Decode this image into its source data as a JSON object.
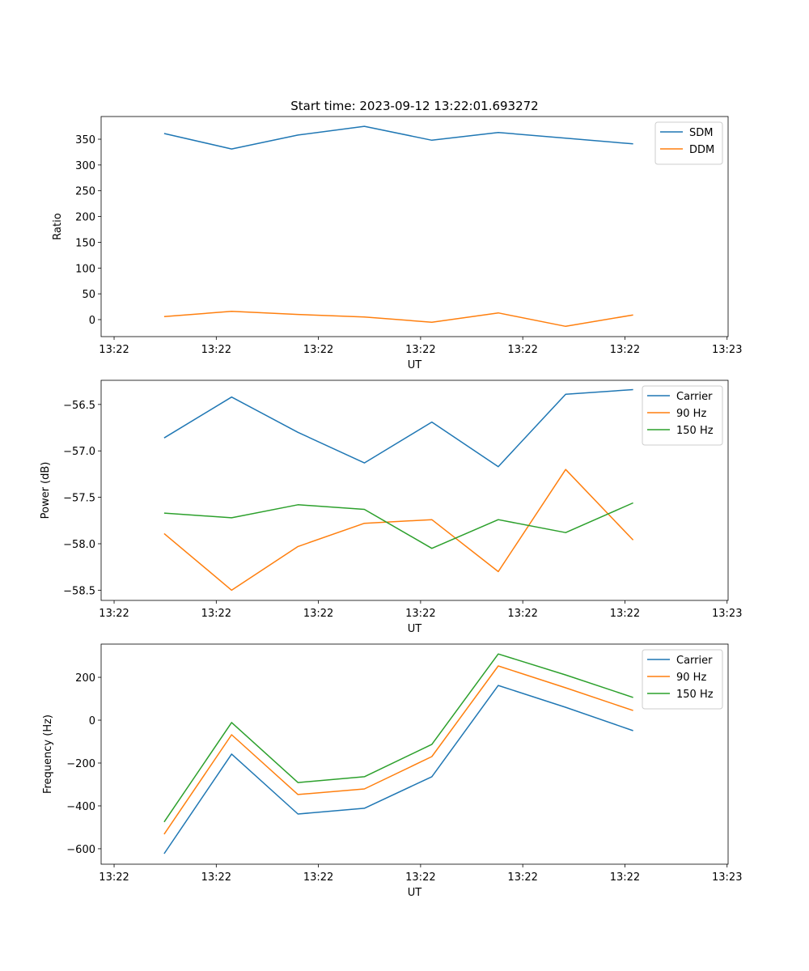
{
  "colors": {
    "blue": "#1f77b4",
    "orange": "#ff7f0e",
    "green": "#2ca02c"
  },
  "chart_data": [
    {
      "type": "line",
      "title": "Start time: 2023-09-12 13:22:01.693272",
      "xlabel": "UT",
      "ylabel": "Ratio",
      "x": [
        0.49,
        1.15,
        1.8,
        2.45,
        3.11,
        3.76,
        4.42,
        5.08
      ],
      "xlim": [
        -0.127,
        6.01
      ],
      "xticks": [
        0,
        1,
        2,
        3,
        4,
        5,
        6
      ],
      "xtick_labels": [
        "13:22",
        "13:22",
        "13:22",
        "13:22",
        "13:22",
        "13:22",
        "13:23"
      ],
      "ylim": [
        -33,
        394
      ],
      "yticks": [
        0,
        50,
        100,
        150,
        200,
        250,
        300,
        350
      ],
      "ytick_labels": [
        "0",
        "50",
        "100",
        "150",
        "200",
        "250",
        "300",
        "350"
      ],
      "legend": "top-right",
      "series": [
        {
          "name": "SDM",
          "color": "#1f77b4",
          "values": [
            361,
            331,
            358,
            375,
            348,
            363,
            352,
            341
          ]
        },
        {
          "name": "DDM",
          "color": "#ff7f0e",
          "values": [
            6,
            16,
            10,
            5,
            -5,
            13,
            -13,
            9
          ]
        }
      ]
    },
    {
      "type": "line",
      "title": "",
      "xlabel": "UT",
      "ylabel": "Power (dB)",
      "x": [
        0.49,
        1.15,
        1.8,
        2.45,
        3.11,
        3.76,
        4.42,
        5.08
      ],
      "xlim": [
        -0.127,
        6.01
      ],
      "xticks": [
        0,
        1,
        2,
        3,
        4,
        5,
        6
      ],
      "xtick_labels": [
        "13:22",
        "13:22",
        "13:22",
        "13:22",
        "13:22",
        "13:22",
        "13:23"
      ],
      "ylim": [
        -58.61,
        -56.24
      ],
      "yticks": [
        -58.5,
        -58.0,
        -57.5,
        -57.0,
        -56.5
      ],
      "ytick_labels": [
        "−58.5",
        "−58.0",
        "−57.5",
        "−57.0",
        "−56.5"
      ],
      "legend": "top-right",
      "series": [
        {
          "name": "Carrier",
          "color": "#1f77b4",
          "values": [
            -56.86,
            -56.42,
            -56.8,
            -57.13,
            -56.69,
            -57.17,
            -56.39,
            -56.34
          ]
        },
        {
          "name": "90 Hz",
          "color": "#ff7f0e",
          "values": [
            -57.89,
            -58.5,
            -58.03,
            -57.78,
            -57.74,
            -58.3,
            -57.2,
            -57.96
          ]
        },
        {
          "name": "150 Hz",
          "color": "#2ca02c",
          "values": [
            -57.67,
            -57.72,
            -57.58,
            -57.63,
            -58.05,
            -57.74,
            -57.88,
            -57.56
          ]
        }
      ]
    },
    {
      "type": "line",
      "title": "",
      "xlabel": "UT",
      "ylabel": "Frequency (Hz)",
      "x": [
        0.49,
        1.15,
        1.8,
        2.45,
        3.11,
        3.76,
        4.42,
        5.08
      ],
      "xlim": [
        -0.127,
        6.01
      ],
      "xticks": [
        0,
        1,
        2,
        3,
        4,
        5,
        6
      ],
      "xtick_labels": [
        "13:22",
        "13:22",
        "13:22",
        "13:22",
        "13:22",
        "13:22",
        "13:23"
      ],
      "ylim": [
        -672,
        355
      ],
      "yticks": [
        -600,
        -400,
        -200,
        0,
        200
      ],
      "ytick_labels": [
        "−600",
        "−400",
        "−200",
        "0",
        "200"
      ],
      "legend": "top-right",
      "series": [
        {
          "name": "Carrier",
          "color": "#1f77b4",
          "values": [
            -623,
            -158,
            -438,
            -411,
            -264,
            162,
            60,
            -49
          ]
        },
        {
          "name": "90 Hz",
          "color": "#ff7f0e",
          "values": [
            -532,
            -68,
            -347,
            -321,
            -170,
            253,
            151,
            45
          ]
        },
        {
          "name": "150 Hz",
          "color": "#2ca02c",
          "values": [
            -475,
            -11,
            -291,
            -264,
            -113,
            309,
            211,
            106
          ]
        }
      ]
    }
  ]
}
